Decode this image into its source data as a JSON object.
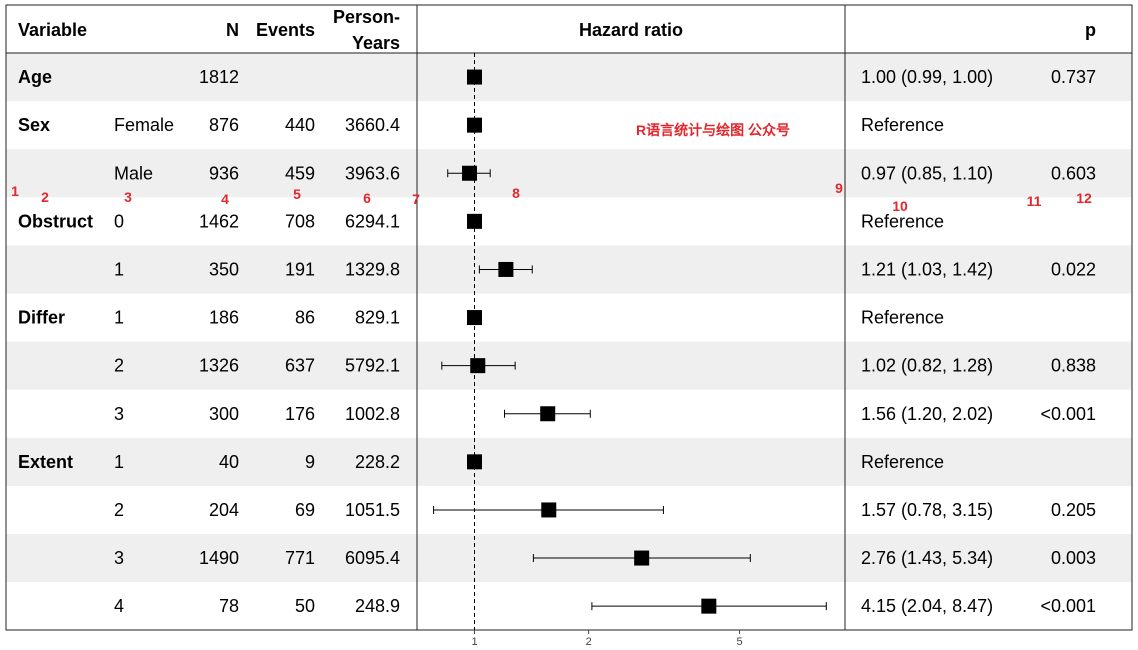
{
  "chart_data": {
    "type": "forest",
    "headers": {
      "variable": "Variable",
      "n": "N",
      "events": "Events",
      "person_years_line1": "Person-",
      "person_years_line2": "Years",
      "hazard_ratio": "Hazard ratio",
      "p": "p"
    },
    "x_scale": "log",
    "x_ticks": [
      1,
      2,
      5
    ],
    "reference_line": 1,
    "rows": [
      {
        "variable": "Age",
        "level": "",
        "n": "1812",
        "events": "",
        "person_years": "",
        "hr": 1.0,
        "lo": 0.99,
        "hi": 1.0,
        "ci_text": "1.00 (0.99, 1.00)",
        "p": "0.737",
        "shaded": true
      },
      {
        "variable": "Sex",
        "level": "Female",
        "n": "876",
        "events": "440",
        "person_years": "3660.4",
        "hr": 1.0,
        "lo": null,
        "hi": null,
        "ci_text": "Reference",
        "p": "",
        "shaded": false
      },
      {
        "variable": "",
        "level": "Male",
        "n": "936",
        "events": "459",
        "person_years": "3963.6",
        "hr": 0.97,
        "lo": 0.85,
        "hi": 1.1,
        "ci_text": "0.97 (0.85, 1.10)",
        "p": "0.603",
        "shaded": true
      },
      {
        "variable": "Obstruct",
        "level": "0",
        "n": "1462",
        "events": "708",
        "person_years": "6294.1",
        "hr": 1.0,
        "lo": null,
        "hi": null,
        "ci_text": "Reference",
        "p": "",
        "shaded": false
      },
      {
        "variable": "",
        "level": "1",
        "n": "350",
        "events": "191",
        "person_years": "1329.8",
        "hr": 1.21,
        "lo": 1.03,
        "hi": 1.42,
        "ci_text": "1.21 (1.03, 1.42)",
        "p": "0.022",
        "shaded": true
      },
      {
        "variable": "Differ",
        "level": "1",
        "n": "186",
        "events": "86",
        "person_years": "829.1",
        "hr": 1.0,
        "lo": null,
        "hi": null,
        "ci_text": "Reference",
        "p": "",
        "shaded": false
      },
      {
        "variable": "",
        "level": "2",
        "n": "1326",
        "events": "637",
        "person_years": "5792.1",
        "hr": 1.02,
        "lo": 0.82,
        "hi": 1.28,
        "ci_text": "1.02 (0.82, 1.28)",
        "p": "0.838",
        "shaded": true
      },
      {
        "variable": "",
        "level": "3",
        "n": "300",
        "events": "176",
        "person_years": "1002.8",
        "hr": 1.56,
        "lo": 1.2,
        "hi": 2.02,
        "ci_text": "1.56 (1.20, 2.02)",
        "p": "<0.001",
        "shaded": false
      },
      {
        "variable": "Extent",
        "level": "1",
        "n": "40",
        "events": "9",
        "person_years": "228.2",
        "hr": 1.0,
        "lo": null,
        "hi": null,
        "ci_text": "Reference",
        "p": "",
        "shaded": true
      },
      {
        "variable": "",
        "level": "2",
        "n": "204",
        "events": "69",
        "person_years": "1051.5",
        "hr": 1.57,
        "lo": 0.78,
        "hi": 3.15,
        "ci_text": "1.57 (0.78, 3.15)",
        "p": "0.205",
        "shaded": false
      },
      {
        "variable": "",
        "level": "3",
        "n": "1490",
        "events": "771",
        "person_years": "6095.4",
        "hr": 2.76,
        "lo": 1.43,
        "hi": 5.34,
        "ci_text": "2.76 (1.43, 5.34)",
        "p": "0.003",
        "shaded": true
      },
      {
        "variable": "",
        "level": "4",
        "n": "78",
        "events": "50",
        "person_years": "248.9",
        "hr": 4.15,
        "lo": 2.04,
        "hi": 8.47,
        "ci_text": "4.15 (2.04, 8.47)",
        "p": "<0.001",
        "shaded": false
      }
    ],
    "annotations": [
      "R语言统计与绘图 公众号",
      "1",
      "2",
      "3",
      "4",
      "5",
      "6",
      "7",
      "8",
      "9",
      "10",
      "11",
      "12"
    ],
    "colors": {
      "shade": "#efefef",
      "marker": "#000000",
      "annotation": "#e0282e"
    }
  }
}
